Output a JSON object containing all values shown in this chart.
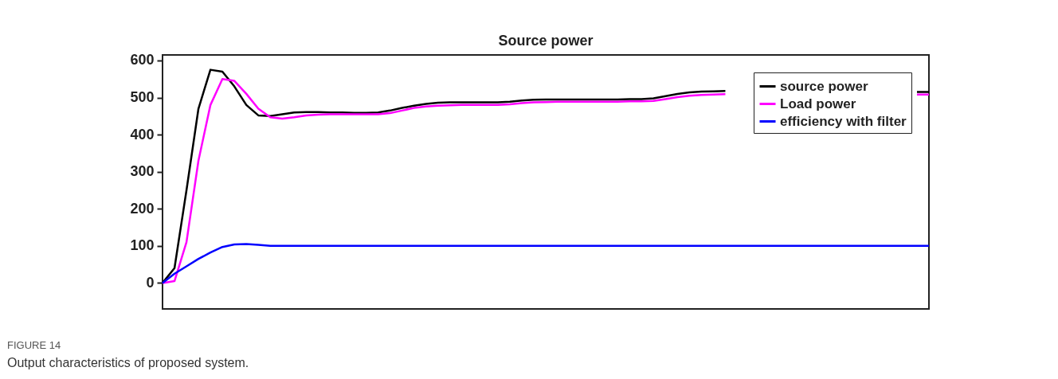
{
  "chart_data": {
    "type": "line",
    "title": "Source power",
    "categories": [
      null,
      null,
      null,
      null,
      null,
      null,
      null,
      null,
      null,
      null,
      null,
      null,
      null,
      null,
      null,
      null,
      null,
      null,
      null,
      null,
      null,
      null,
      null,
      null,
      null,
      null,
      null,
      null,
      null,
      null,
      null,
      null,
      null,
      null,
      null,
      null,
      null,
      null,
      null,
      null,
      null,
      null,
      null,
      null,
      null,
      null,
      null,
      null,
      null,
      null,
      null,
      null,
      null,
      null,
      null,
      null,
      null,
      null,
      null,
      null,
      null,
      null,
      null,
      null,
      null
    ],
    "series": [
      {
        "name": "source power",
        "color": "#000000",
        "values": [
          0,
          40,
          250,
          470,
          575,
          570,
          530,
          480,
          452,
          450,
          455,
          460,
          461,
          461,
          460,
          460,
          459,
          459,
          460,
          465,
          472,
          478,
          483,
          486,
          487,
          487,
          487,
          487,
          487,
          489,
          492,
          494,
          495,
          495,
          495,
          495,
          495,
          495,
          495,
          496,
          496,
          498,
          504,
          510,
          514,
          516,
          517,
          518,
          null,
          null,
          null,
          null,
          null,
          null,
          null,
          null,
          null,
          null,
          null,
          null,
          null,
          null,
          null,
          515,
          515
        ]
      },
      {
        "name": "Load power",
        "color": "#ff00ff",
        "values": [
          0,
          5,
          110,
          330,
          480,
          550,
          545,
          510,
          470,
          447,
          443,
          447,
          452,
          454,
          455,
          455,
          455,
          455,
          455,
          458,
          465,
          472,
          476,
          478,
          479,
          480,
          480,
          480,
          480,
          482,
          485,
          487,
          488,
          489,
          489,
          489,
          489,
          489,
          489,
          490,
          490,
          491,
          496,
          501,
          505,
          507,
          508,
          509,
          null,
          null,
          null,
          null,
          null,
          null,
          null,
          null,
          null,
          null,
          null,
          null,
          null,
          null,
          null,
          508,
          508
        ]
      },
      {
        "name": "efficiency with filter",
        "color": "#0000ff",
        "values": [
          0,
          25,
          45,
          65,
          82,
          97,
          104,
          105,
          103,
          100,
          100,
          100,
          100,
          100,
          100,
          100,
          100,
          100,
          100,
          100,
          100,
          100,
          100,
          100,
          100,
          100,
          100,
          100,
          100,
          100,
          100,
          100,
          100,
          100,
          100,
          100,
          100,
          100,
          100,
          100,
          100,
          100,
          100,
          100,
          100,
          100,
          100,
          100,
          100,
          100,
          100,
          100,
          100,
          100,
          100,
          100,
          100,
          100,
          100,
          100,
          100,
          100,
          100,
          100,
          100
        ]
      }
    ],
    "ylim": [
      -70,
      615
    ],
    "yticks": [
      0,
      100,
      200,
      300,
      400,
      500,
      600
    ],
    "grid": false,
    "legend": "top right",
    "line_style": "solid",
    "marker": "none",
    "annotations": [
      "FIGURE 14",
      "Output characteristics of proposed system."
    ]
  }
}
